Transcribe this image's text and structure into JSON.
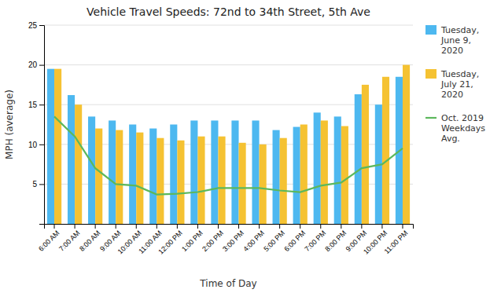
{
  "chart_data": {
    "type": "bar",
    "title": "Vehicle Travel Speeds: 72nd to 34th Street, 5th Ave",
    "x_label": "Time of Day",
    "y_label": "MPH (average)",
    "categories": [
      "6:00 AM",
      "7:00 AM",
      "8:00 AM",
      "9:00 AM",
      "10:00 AM",
      "11:00 AM",
      "12:00 PM",
      "1:00 PM",
      "2:00 PM",
      "3:00 PM",
      "4:00 PM",
      "5:00 PM",
      "6:00 PM",
      "7:00 PM",
      "8:00 PM",
      "9:00 PM",
      "10:00 PM",
      "11:00 PM"
    ],
    "series": [
      {
        "name": "Tuesday,\nJune 9,\n2020",
        "type": "bar",
        "color": "#4DB8F0",
        "values": [
          19.5,
          16.2,
          13.5,
          13.0,
          12.5,
          12.0,
          12.5,
          13.0,
          13.0,
          13.0,
          13.0,
          11.8,
          12.2,
          14.0,
          13.5,
          16.3,
          15.0,
          18.5
        ]
      },
      {
        "name": "Tuesday,\nJuly 21,\n2020",
        "type": "bar",
        "color": "#F5C232",
        "values": [
          19.5,
          15.0,
          12.0,
          11.8,
          11.5,
          10.8,
          10.5,
          11.0,
          11.0,
          10.2,
          10.0,
          10.8,
          12.5,
          13.0,
          12.3,
          17.5,
          18.5,
          20.0
        ]
      },
      {
        "name": "Oct. 2019\nWeekdays\nAvg.",
        "type": "line",
        "color": "#5CB85C",
        "values": [
          13.5,
          11.0,
          7.0,
          5.0,
          4.8,
          3.7,
          3.8,
          4.0,
          4.5,
          4.5,
          4.5,
          4.2,
          4.0,
          4.8,
          5.2,
          7.0,
          7.5,
          9.5
        ]
      }
    ],
    "ylim": [
      0,
      25
    ],
    "yticks": [
      5,
      10,
      15,
      20,
      25
    ],
    "grid": true,
    "legend": "right"
  }
}
